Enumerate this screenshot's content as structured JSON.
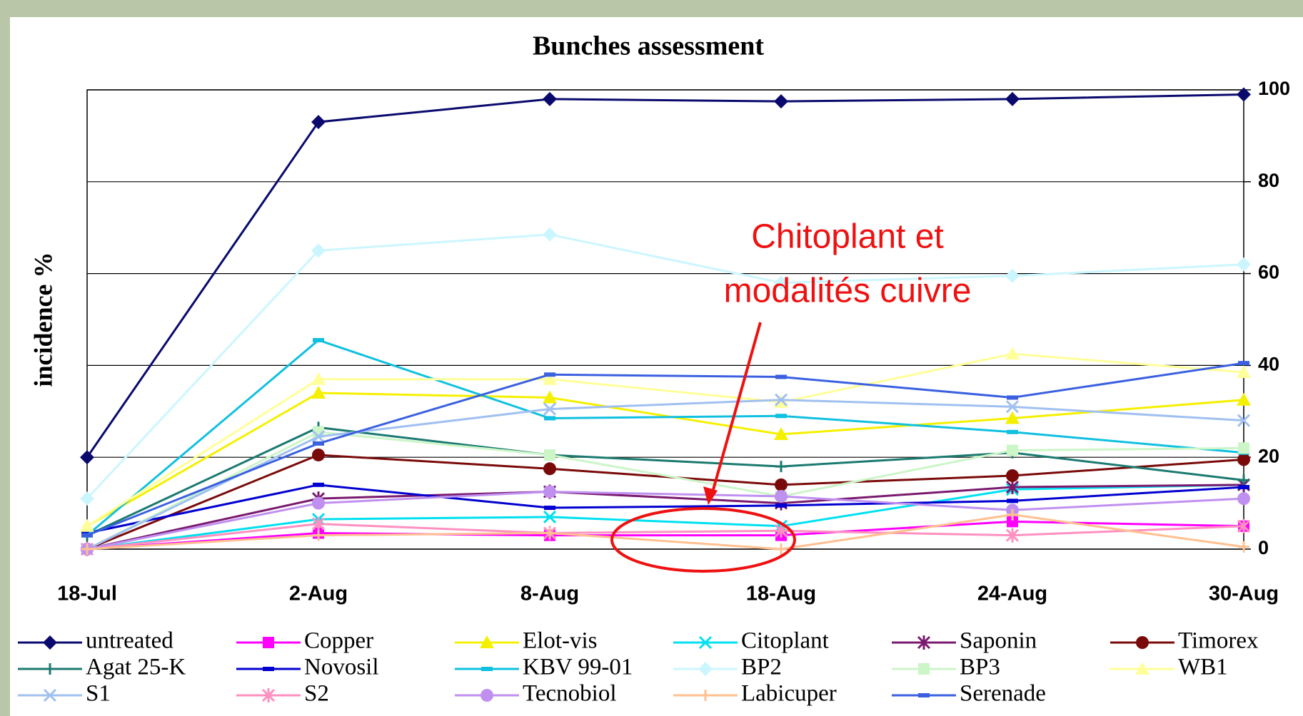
{
  "chart_data": {
    "type": "line",
    "title": "Bunches assessment",
    "y_label": "incidence %",
    "categories": [
      "18-Jul",
      "2-Aug",
      "8-Aug",
      "18-Aug",
      "24-Aug",
      "30-Aug"
    ],
    "ylim": [
      0,
      100
    ],
    "yticks": [
      0,
      20,
      40,
      60,
      80,
      100
    ],
    "grid": true,
    "y_axis_side": "right",
    "legend": "bottom",
    "annotation": {
      "lines": [
        "Chitoplant et",
        "modalités cuivre"
      ],
      "color": "#ee1111"
    },
    "series": [
      {
        "name": "untreated",
        "color": "#0a0a6e",
        "marker": "diamond",
        "values": [
          20,
          93,
          98,
          97.5,
          98,
          99
        ]
      },
      {
        "name": "Copper",
        "color": "#ff00ff",
        "marker": "square",
        "values": [
          0,
          3.5,
          3,
          3,
          6,
          5
        ]
      },
      {
        "name": "Elot-vis",
        "color": "#f5f000",
        "marker": "triangle",
        "values": [
          5,
          34,
          33,
          25,
          28.5,
          32.5
        ]
      },
      {
        "name": "Citoplant",
        "color": "#00e0f0",
        "marker": "x",
        "values": [
          0,
          6.5,
          7,
          5,
          13,
          14
        ]
      },
      {
        "name": "Saponin",
        "color": "#7a1a6e",
        "marker": "star",
        "values": [
          0,
          11,
          12.5,
          10,
          13.5,
          14
        ]
      },
      {
        "name": "Timorex",
        "color": "#7a0a0a",
        "marker": "circle",
        "values": [
          0,
          20.5,
          17.5,
          14,
          16,
          19.5
        ]
      },
      {
        "name": "Agat 25-K",
        "color": "#1a7a70",
        "marker": "plus",
        "values": [
          3,
          26.5,
          20.5,
          18,
          21,
          15
        ]
      },
      {
        "name": "Novosil",
        "color": "#0000d0",
        "marker": "dash",
        "values": [
          3.5,
          14,
          9,
          9.5,
          10.5,
          13.5
        ]
      },
      {
        "name": "KBV 99-01",
        "color": "#10c0e0",
        "marker": "dash",
        "values": [
          3,
          45.5,
          28.5,
          29,
          25.5,
          21
        ]
      },
      {
        "name": "BP2",
        "color": "#ccf6ff",
        "marker": "diamond",
        "values": [
          11,
          65,
          68.5,
          58,
          59.5,
          62
        ]
      },
      {
        "name": "BP3",
        "color": "#ccf5c8",
        "marker": "square",
        "values": [
          0,
          25.5,
          20.5,
          11.5,
          21.5,
          22
        ]
      },
      {
        "name": "WB1",
        "color": "#ffff99",
        "marker": "triangle",
        "values": [
          5,
          37,
          37,
          32,
          42.5,
          38.5
        ]
      },
      {
        "name": "S1",
        "color": "#a0c0f0",
        "marker": "x",
        "values": [
          0,
          24.5,
          30.5,
          32.5,
          31,
          28
        ]
      },
      {
        "name": "S2",
        "color": "#ff90c0",
        "marker": "star",
        "values": [
          0,
          5.5,
          3.5,
          4,
          3,
          5
        ]
      },
      {
        "name": "Tecnobiol",
        "color": "#c090f0",
        "marker": "circle",
        "values": [
          0,
          10,
          12.5,
          11.5,
          8.5,
          11
        ]
      },
      {
        "name": "Labicuper",
        "color": "#ffc090",
        "marker": "plus",
        "values": [
          0,
          3,
          3.5,
          0,
          7.5,
          0.5
        ]
      },
      {
        "name": "Serenade",
        "color": "#3a60e0",
        "marker": "dash",
        "values": [
          3,
          23,
          38,
          37.5,
          33,
          40.5
        ]
      }
    ]
  }
}
